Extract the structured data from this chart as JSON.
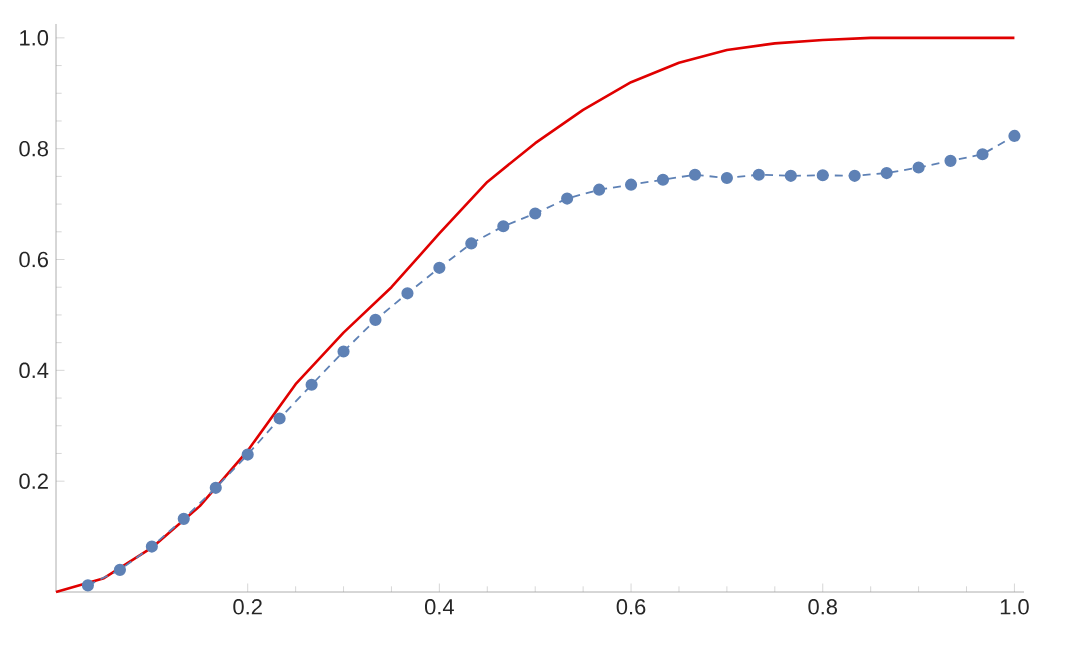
{
  "chart_data": {
    "type": "line",
    "xlim": [
      0,
      1.01
    ],
    "ylim": [
      0,
      1.025
    ],
    "xticks": [
      0.2,
      0.4,
      0.6,
      0.8,
      {
        "value": 1,
        "label": "1.0"
      }
    ],
    "yticks": [
      0.2,
      0.4,
      0.6,
      0.8,
      {
        "value": 1,
        "label": "1.0"
      }
    ],
    "grid": false,
    "series": [
      {
        "color": "#e00000",
        "marker": "none",
        "line_style": "solid",
        "x": [
          0,
          0.05,
          0.1,
          0.15,
          0.2,
          0.25,
          0.3,
          0.35,
          0.4,
          0.45,
          0.5,
          0.55,
          0.6,
          0.65,
          0.7,
          0.75,
          0.8,
          0.85,
          0.9,
          0.95,
          1.0
        ],
        "values": [
          0,
          0.025,
          0.08,
          0.155,
          0.255,
          0.375,
          0.468,
          0.55,
          0.647,
          0.74,
          0.81,
          0.87,
          0.92,
          0.955,
          0.978,
          0.99,
          0.996,
          1.0,
          1.0,
          1.0,
          1.0
        ]
      },
      {
        "color": "#5e81b5",
        "marker": "circle",
        "line_style": "dashed",
        "x": [
          0.0333,
          0.0667,
          0.1,
          0.1333,
          0.1667,
          0.2,
          0.2333,
          0.2667,
          0.3,
          0.3333,
          0.3667,
          0.4,
          0.4333,
          0.4667,
          0.5,
          0.5333,
          0.5667,
          0.6,
          0.6333,
          0.6667,
          0.7,
          0.7333,
          0.7667,
          0.8,
          0.8333,
          0.8667,
          0.9,
          0.9333,
          0.9667,
          1.0
        ],
        "values": [
          0.012,
          0.04,
          0.082,
          0.132,
          0.188,
          0.248,
          0.313,
          0.374,
          0.434,
          0.491,
          0.539,
          0.585,
          0.629,
          0.66,
          0.683,
          0.71,
          0.726,
          0.735,
          0.744,
          0.753,
          0.747,
          0.753,
          0.751,
          0.752,
          0.751,
          0.756,
          0.766,
          0.778,
          0.79,
          0.823
        ]
      }
    ]
  }
}
